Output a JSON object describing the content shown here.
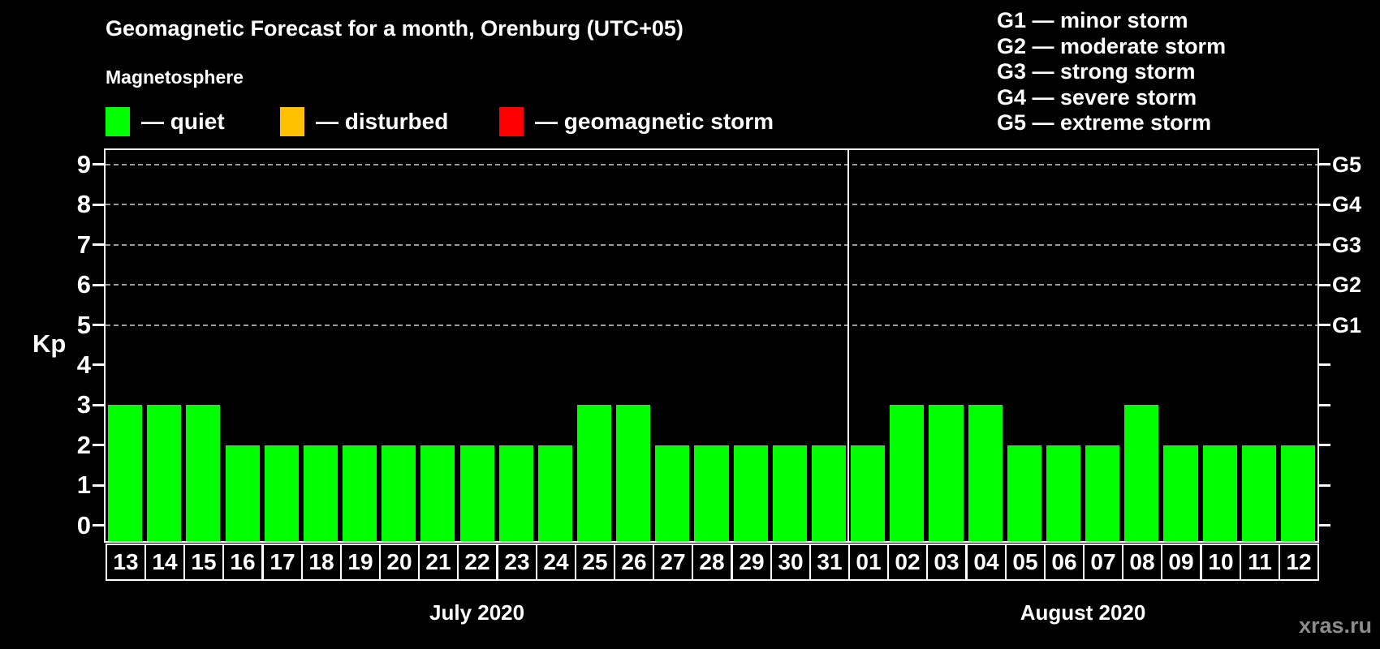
{
  "title": "Geomagnetic Forecast for a month, Orenburg (UTC+05)",
  "subtitle": "Magnetosphere",
  "legend": {
    "items": [
      {
        "name": "quiet",
        "label": "— quiet",
        "color": "#00ff00"
      },
      {
        "name": "disturbed",
        "label": "— disturbed",
        "color": "#ffc000"
      },
      {
        "name": "geomagnetic-storm",
        "label": "— geomagnetic storm",
        "color": "#ff0000"
      }
    ]
  },
  "storm_scale_legend": [
    "G1 — minor storm",
    "G2 — moderate storm",
    "G3 — strong storm",
    "G4 — severe storm",
    "G5 — extreme storm"
  ],
  "watermark": "xras.ru",
  "chart_data": {
    "type": "bar",
    "title": "Geomagnetic Forecast for a month, Orenburg (UTC+05)",
    "ylabel": "Kp",
    "ylim": [
      0,
      9
    ],
    "y_ticks": [
      0,
      1,
      2,
      3,
      4,
      5,
      6,
      7,
      8,
      9
    ],
    "gridlines_at_kp": [
      5,
      6,
      7,
      8,
      9
    ],
    "grid": "dashed horizontal at G-storm levels",
    "right_axis": [
      {
        "kp": 5,
        "label": "G1"
      },
      {
        "kp": 6,
        "label": "G2"
      },
      {
        "kp": 7,
        "label": "G3"
      },
      {
        "kp": 8,
        "label": "G4"
      },
      {
        "kp": 9,
        "label": "G5"
      }
    ],
    "bar_status": "quiet",
    "bar_color": "#00ff00",
    "months": [
      {
        "label": "July 2020",
        "days": [
          "13",
          "14",
          "15",
          "16",
          "17",
          "18",
          "19",
          "20",
          "21",
          "22",
          "23",
          "24",
          "25",
          "26",
          "27",
          "28",
          "29",
          "30",
          "31"
        ],
        "values": [
          3,
          3,
          3,
          2,
          2,
          2,
          2,
          2,
          2,
          2,
          2,
          2,
          3,
          3,
          2,
          2,
          2,
          2,
          2
        ]
      },
      {
        "label": "August 2020",
        "days": [
          "01",
          "02",
          "03",
          "04",
          "05",
          "06",
          "07",
          "08",
          "09",
          "10",
          "11",
          "12"
        ],
        "values": [
          2,
          3,
          3,
          3,
          2,
          2,
          2,
          3,
          2,
          2,
          2,
          2
        ]
      }
    ]
  }
}
